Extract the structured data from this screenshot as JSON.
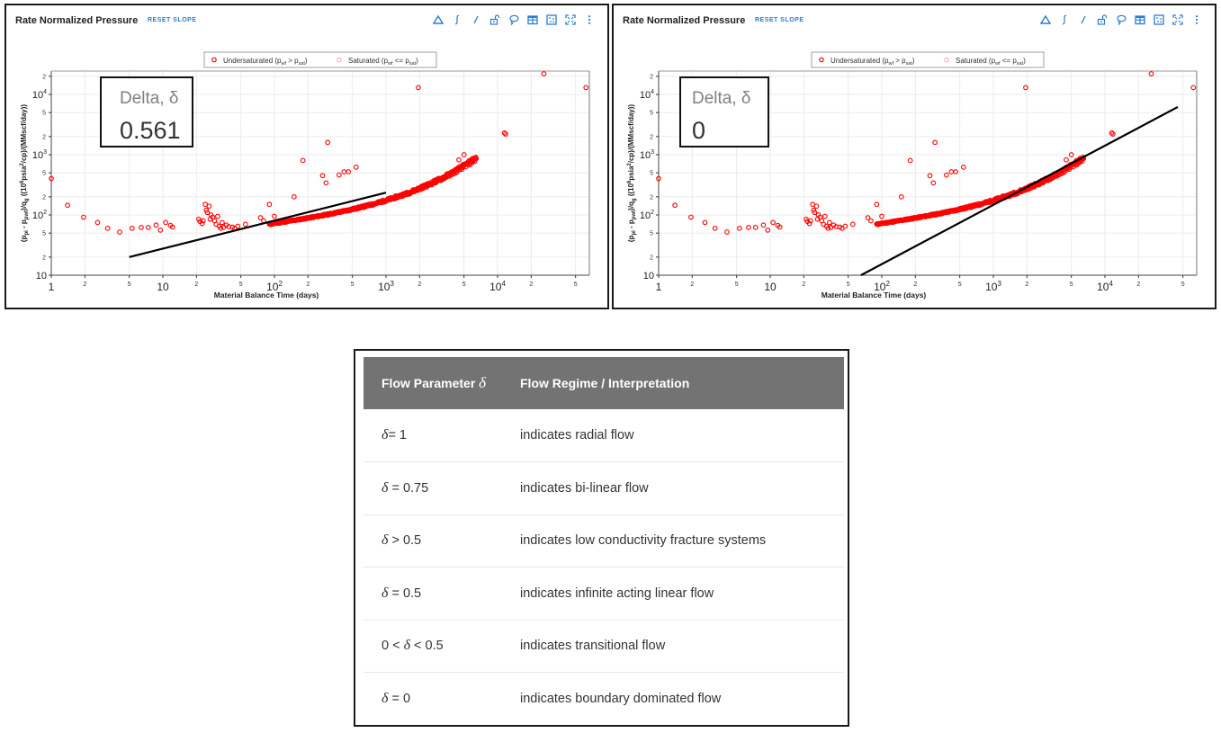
{
  "panels": [
    {
      "title": "Rate Normalized Pressure",
      "reset_label": "RESET SLOPE",
      "delta_label": "Delta, δ",
      "delta_value": "0.561",
      "toolbar": [
        "triangle-icon",
        "integral-icon",
        "slope-line-icon",
        "unlock-icon",
        "lasso-icon",
        "table-icon",
        "select-box-icon",
        "fullscreen-icon",
        "more-vert-icon"
      ]
    },
    {
      "title": "Rate Normalized Pressure",
      "reset_label": "RESET SLOPE",
      "delta_label": "Delta, δ",
      "delta_value": "0",
      "toolbar": [
        "triangle-icon",
        "integral-icon",
        "slope-line-icon",
        "unlock-icon",
        "lasso-icon",
        "table-icon",
        "select-box-icon",
        "fullscreen-icon",
        "more-vert-icon"
      ]
    }
  ],
  "colors": {
    "accent": "#2b7bd4",
    "undersaturated": "#ff0000",
    "saturated": "#ffb3b3",
    "fit_line": "#000000",
    "table_header": "#737373",
    "grid": "#ebebeb"
  },
  "table": {
    "headers": [
      "Flow Parameter",
      "Flow Regime / Interpretation"
    ],
    "header_symbol": "δ",
    "rows": [
      {
        "param_pre": "",
        "symbol": "δ",
        "param_post": "= 1",
        "interpretation": "indicates radial flow"
      },
      {
        "param_pre": "",
        "symbol": "δ",
        "param_post": " = 0.75",
        "interpretation": "indicates bi-linear flow"
      },
      {
        "param_pre": "",
        "symbol": "δ",
        "param_post": " > 0.5",
        "interpretation": "indicates low conductivity fracture systems"
      },
      {
        "param_pre": "",
        "symbol": "δ",
        "param_post": " = 0.5",
        "interpretation": "indicates infinite acting linear flow"
      },
      {
        "param_pre": "0 < ",
        "symbol": "δ",
        "param_post": " < 0.5",
        "interpretation": "indicates transitional flow"
      },
      {
        "param_pre": "",
        "symbol": "δ",
        "param_post": " = 0",
        "interpretation": "indicates boundary dominated flow"
      }
    ]
  },
  "chart_data": [
    {
      "type": "scatter",
      "title": "Rate Normalized Pressure",
      "xlabel": "Material Balance Time (days)",
      "ylabel": "(p_pi - p_pwf)/q_g ((10^6 psia^2/cp)/(MMscf/day))",
      "xscale": "log",
      "yscale": "log",
      "xlim": [
        1,
        65000
      ],
      "ylim": [
        10,
        22000
      ],
      "x_major_ticks": [
        "1",
        "10",
        "10^2",
        "10^3",
        "10^4"
      ],
      "x_minor_ticks": [
        "2",
        "5"
      ],
      "y_major_ticks": [
        "10",
        "10^2",
        "10^3",
        "10^4"
      ],
      "y_minor_ticks": [
        "2",
        "5"
      ],
      "grid": true,
      "legend": [
        "Undersaturated (p_wf > p_sat)",
        "Saturated (p_wf <= p_sat)"
      ],
      "legend_position": "top-center",
      "annotation": {
        "label": "Delta, δ",
        "value": 0.561
      },
      "series": [
        {
          "name": "Undersaturated (p_wf > p_sat)",
          "x": [
            1,
            1.4,
            1.95,
            2.6,
            3.2,
            4.1,
            5.3,
            6.4,
            7.4,
            8.7,
            9.5,
            10.6,
            11.7,
            12.2,
            21,
            21.5,
            22.5,
            23,
            24,
            24.5,
            25,
            26,
            26.5,
            27,
            28,
            29,
            30,
            31,
            32,
            33,
            34,
            35,
            37,
            39,
            42,
            44,
            47,
            55,
            75,
            80,
            90,
            100,
            150,
            180,
            270,
            300,
            290,
            380,
            420,
            460,
            540,
            1950,
            11500,
            11800,
            26000,
            62000,
            5000,
            6000,
            4500
          ],
          "y": [
            400,
            145,
            92,
            75,
            60,
            52,
            60,
            62,
            62,
            68,
            56,
            75,
            67,
            63,
            85,
            78,
            72,
            80,
            150,
            120,
            110,
            140,
            85,
            100,
            92,
            80,
            70,
            95,
            65,
            60,
            75,
            62,
            68,
            64,
            63,
            60,
            65,
            70,
            90,
            80,
            150,
            95,
            200,
            800,
            450,
            1600,
            340,
            460,
            520,
            520,
            620,
            13000,
            2300,
            2200,
            22000,
            13000,
            1000,
            870,
            820
          ],
          "trend_cluster": {
            "x_range": [
              90,
              6500
            ],
            "y_range": [
              70,
              850
            ]
          }
        },
        {
          "name": "Saturated (p_wf <= p_sat)",
          "x": [],
          "y": []
        }
      ],
      "fit_line": {
        "x": [
          5,
          1000
        ],
        "y": [
          20,
          235
        ]
      }
    },
    {
      "type": "scatter",
      "title": "Rate Normalized Pressure",
      "xlabel": "Material Balance Time (days)",
      "ylabel": "(p_pi - p_pwf)/q_g ((10^6 psia^2/cp)/(MMscf/day))",
      "xscale": "log",
      "yscale": "log",
      "xlim": [
        1,
        65000
      ],
      "ylim": [
        10,
        22000
      ],
      "grid": true,
      "legend": [
        "Undersaturated (p_wf > p_sat)",
        "Saturated (p_wf <= p_sat)"
      ],
      "annotation": {
        "label": "Delta, δ",
        "value": 0
      },
      "series": [
        {
          "name": "Undersaturated (p_wf > p_sat)",
          "same_as_panel": 1
        },
        {
          "name": "Saturated (p_wf <= p_sat)",
          "x": [],
          "y": []
        }
      ],
      "fit_line": {
        "x": [
          65,
          45000
        ],
        "y": [
          10,
          6200
        ]
      }
    }
  ]
}
